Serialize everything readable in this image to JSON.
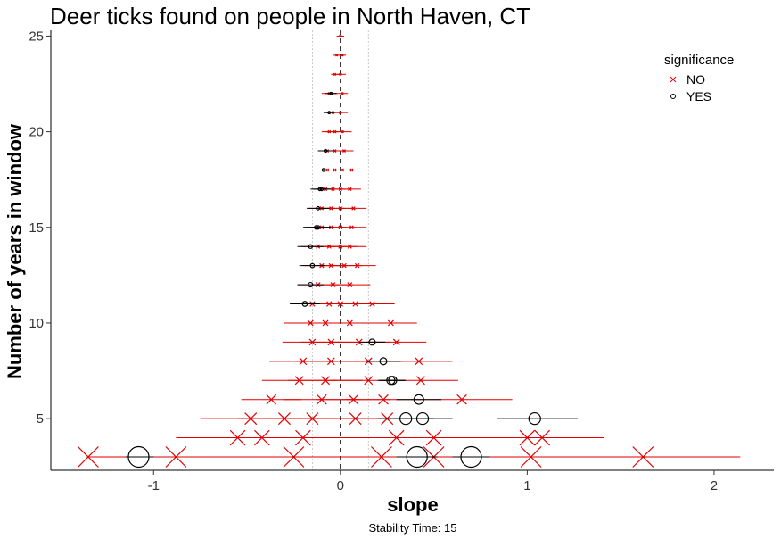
{
  "chart_data": {
    "type": "scatter",
    "title": "Deer ticks found on people in North Haven, CT",
    "xlabel": "slope",
    "ylabel": "Number of years in window",
    "caption": "Stability Time: 15",
    "xlim": [
      -1.55,
      2.32
    ],
    "ylim": [
      2.3,
      25.3
    ],
    "x_ticks": [
      -1,
      0,
      1,
      2
    ],
    "x_tick_labels": [
      "-1",
      "0",
      "1",
      "2"
    ],
    "y_ticks": [
      5,
      10,
      15,
      20,
      25
    ],
    "y_tick_labels": [
      "5",
      "10",
      "15",
      "20",
      "25"
    ],
    "reference_lines": {
      "zero": 0,
      "bounds": [
        -0.15,
        0.15
      ]
    },
    "grid": false,
    "legend": {
      "title": "significance",
      "position": "top-right",
      "entries": [
        {
          "label": "NO",
          "marker": "x",
          "color": "#e00000"
        },
        {
          "label": "YES",
          "marker": "circle",
          "color": "#000000"
        }
      ]
    },
    "colors": {
      "NO": "#e00000",
      "YES": "#000000"
    },
    "series": [
      {
        "name": "NO",
        "points": [
          {
            "y": 25,
            "x": 0.0,
            "lo": -0.02,
            "hi": 0.02
          },
          {
            "y": 24,
            "x": -0.02,
            "lo": -0.04,
            "hi": 0.01
          },
          {
            "y": 24,
            "x": 0.01,
            "lo": -0.01,
            "hi": 0.03
          },
          {
            "y": 23,
            "x": -0.03,
            "lo": -0.05,
            "hi": 0.0
          },
          {
            "y": 23,
            "x": 0.0,
            "lo": -0.03,
            "hi": 0.03
          },
          {
            "y": 22,
            "x": -0.06,
            "lo": -0.1,
            "hi": -0.02
          },
          {
            "y": 22,
            "x": 0.01,
            "lo": -0.03,
            "hi": 0.04
          },
          {
            "y": 21,
            "x": -0.04,
            "lo": -0.08,
            "hi": 0.0
          },
          {
            "y": 21,
            "x": 0.0,
            "lo": -0.04,
            "hi": 0.04
          },
          {
            "y": 20,
            "x": -0.06,
            "lo": -0.1,
            "hi": -0.01
          },
          {
            "y": 20,
            "x": -0.03,
            "lo": -0.08,
            "hi": 0.02
          },
          {
            "y": 20,
            "x": 0.01,
            "lo": -0.04,
            "hi": 0.06
          },
          {
            "y": 19,
            "x": -0.07,
            "lo": -0.12,
            "hi": -0.02
          },
          {
            "y": 19,
            "x": -0.03,
            "lo": -0.08,
            "hi": 0.02
          },
          {
            "y": 19,
            "x": 0.02,
            "lo": -0.03,
            "hi": 0.07
          },
          {
            "y": 18,
            "x": -0.07,
            "lo": -0.13,
            "hi": -0.01
          },
          {
            "y": 18,
            "x": -0.03,
            "lo": -0.09,
            "hi": 0.03
          },
          {
            "y": 18,
            "x": 0.01,
            "lo": -0.05,
            "hi": 0.07
          },
          {
            "y": 18,
            "x": 0.06,
            "lo": 0.0,
            "hi": 0.12
          },
          {
            "y": 17,
            "x": -0.08,
            "lo": -0.14,
            "hi": -0.02
          },
          {
            "y": 17,
            "x": -0.04,
            "lo": -0.1,
            "hi": 0.02
          },
          {
            "y": 17,
            "x": 0.0,
            "lo": -0.06,
            "hi": 0.06
          },
          {
            "y": 17,
            "x": 0.05,
            "lo": -0.01,
            "hi": 0.11
          },
          {
            "y": 16,
            "x": -0.1,
            "lo": -0.17,
            "hi": -0.03
          },
          {
            "y": 16,
            "x": -0.05,
            "lo": -0.12,
            "hi": 0.02
          },
          {
            "y": 16,
            "x": 0.0,
            "lo": -0.07,
            "hi": 0.07
          },
          {
            "y": 16,
            "x": 0.07,
            "lo": 0.0,
            "hi": 0.14
          },
          {
            "y": 15,
            "x": -0.1,
            "lo": -0.18,
            "hi": -0.02
          },
          {
            "y": 15,
            "x": -0.05,
            "lo": -0.13,
            "hi": 0.03
          },
          {
            "y": 15,
            "x": 0.0,
            "lo": -0.08,
            "hi": 0.08
          },
          {
            "y": 15,
            "x": 0.06,
            "lo": -0.02,
            "hi": 0.14
          },
          {
            "y": 14,
            "x": -0.12,
            "lo": -0.21,
            "hi": -0.03
          },
          {
            "y": 14,
            "x": -0.06,
            "lo": -0.15,
            "hi": 0.03
          },
          {
            "y": 14,
            "x": 0.0,
            "lo": -0.09,
            "hi": 0.09
          },
          {
            "y": 14,
            "x": 0.05,
            "lo": -0.04,
            "hi": 0.14
          },
          {
            "y": 13,
            "x": -0.1,
            "lo": -0.2,
            "hi": 0.0
          },
          {
            "y": 13,
            "x": -0.05,
            "lo": -0.15,
            "hi": 0.05
          },
          {
            "y": 13,
            "x": 0.02,
            "lo": -0.08,
            "hi": 0.12
          },
          {
            "y": 13,
            "x": 0.09,
            "lo": -0.01,
            "hi": 0.19
          },
          {
            "y": 12,
            "x": -0.12,
            "lo": -0.23,
            "hi": -0.01
          },
          {
            "y": 12,
            "x": -0.04,
            "lo": -0.15,
            "hi": 0.07
          },
          {
            "y": 12,
            "x": 0.05,
            "lo": -0.06,
            "hi": 0.16
          },
          {
            "y": 11,
            "x": -0.15,
            "lo": -0.27,
            "hi": -0.03
          },
          {
            "y": 11,
            "x": -0.06,
            "lo": -0.18,
            "hi": 0.06
          },
          {
            "y": 11,
            "x": 0.0,
            "lo": -0.12,
            "hi": 0.12
          },
          {
            "y": 11,
            "x": 0.08,
            "lo": -0.04,
            "hi": 0.2
          },
          {
            "y": 11,
            "x": 0.17,
            "lo": 0.05,
            "hi": 0.29
          },
          {
            "y": 10,
            "x": -0.16,
            "lo": -0.3,
            "hi": -0.02
          },
          {
            "y": 10,
            "x": -0.08,
            "lo": -0.22,
            "hi": 0.06
          },
          {
            "y": 10,
            "x": 0.05,
            "lo": -0.09,
            "hi": 0.19
          },
          {
            "y": 10,
            "x": 0.27,
            "lo": 0.13,
            "hi": 0.41
          },
          {
            "y": 9,
            "x": -0.15,
            "lo": -0.31,
            "hi": 0.01
          },
          {
            "y": 9,
            "x": -0.05,
            "lo": -0.21,
            "hi": 0.11
          },
          {
            "y": 9,
            "x": 0.1,
            "lo": -0.06,
            "hi": 0.26
          },
          {
            "y": 9,
            "x": 0.3,
            "lo": 0.14,
            "hi": 0.46
          },
          {
            "y": 8,
            "x": -0.2,
            "lo": -0.38,
            "hi": -0.02
          },
          {
            "y": 8,
            "x": -0.05,
            "lo": -0.23,
            "hi": 0.13
          },
          {
            "y": 8,
            "x": 0.15,
            "lo": -0.03,
            "hi": 0.33
          },
          {
            "y": 8,
            "x": 0.42,
            "lo": 0.24,
            "hi": 0.6
          },
          {
            "y": 7,
            "x": -0.22,
            "lo": -0.42,
            "hi": -0.02
          },
          {
            "y": 7,
            "x": -0.08,
            "lo": -0.28,
            "hi": 0.12
          },
          {
            "y": 7,
            "x": 0.15,
            "lo": -0.05,
            "hi": 0.35
          },
          {
            "y": 7,
            "x": 0.43,
            "lo": 0.23,
            "hi": 0.63
          },
          {
            "y": 6,
            "x": -0.37,
            "lo": -0.53,
            "hi": -0.21
          },
          {
            "y": 6,
            "x": -0.1,
            "lo": -0.3,
            "hi": 0.1
          },
          {
            "y": 6,
            "x": 0.07,
            "lo": -0.13,
            "hi": 0.27
          },
          {
            "y": 6,
            "x": 0.23,
            "lo": 0.03,
            "hi": 0.43
          },
          {
            "y": 6,
            "x": 0.65,
            "lo": 0.38,
            "hi": 0.92
          },
          {
            "y": 5,
            "x": -0.48,
            "lo": -0.75,
            "hi": -0.21
          },
          {
            "y": 5,
            "x": -0.3,
            "lo": -0.55,
            "hi": -0.05
          },
          {
            "y": 5,
            "x": -0.15,
            "lo": -0.4,
            "hi": 0.1
          },
          {
            "y": 5,
            "x": 0.08,
            "lo": -0.17,
            "hi": 0.33
          },
          {
            "y": 5,
            "x": 0.25,
            "lo": 0.0,
            "hi": 0.5
          },
          {
            "y": 4,
            "x": -0.55,
            "lo": -0.88,
            "hi": -0.22
          },
          {
            "y": 4,
            "x": -0.42,
            "lo": -0.75,
            "hi": -0.09
          },
          {
            "y": 4,
            "x": -0.2,
            "lo": -0.53,
            "hi": 0.13
          },
          {
            "y": 4,
            "x": 0.3,
            "lo": -0.03,
            "hi": 0.63
          },
          {
            "y": 4,
            "x": 0.5,
            "lo": 0.17,
            "hi": 0.83
          },
          {
            "y": 4,
            "x": 1.0,
            "lo": 0.67,
            "hi": 1.33
          },
          {
            "y": 4,
            "x": 1.08,
            "lo": 0.75,
            "hi": 1.41
          },
          {
            "y": 3,
            "x": -1.35,
            "lo": -1.35,
            "hi": -0.5
          },
          {
            "y": 3,
            "x": -0.88,
            "lo": -1.35,
            "hi": -0.35
          },
          {
            "y": 3,
            "x": -0.25,
            "lo": -0.9,
            "hi": 0.4
          },
          {
            "y": 3,
            "x": 0.22,
            "lo": -0.43,
            "hi": 0.87
          },
          {
            "y": 3,
            "x": 0.5,
            "lo": -0.15,
            "hi": 1.15
          },
          {
            "y": 3,
            "x": 1.02,
            "lo": 0.37,
            "hi": 1.67
          },
          {
            "y": 3,
            "x": 1.62,
            "lo": 1.1,
            "hi": 2.14
          }
        ]
      },
      {
        "name": "YES",
        "points": [
          {
            "y": 22,
            "x": -0.05,
            "lo": -0.08,
            "hi": -0.02
          },
          {
            "y": 21,
            "x": -0.06,
            "lo": -0.09,
            "hi": -0.03
          },
          {
            "y": 19,
            "x": -0.08,
            "lo": -0.12,
            "hi": -0.04
          },
          {
            "y": 18,
            "x": -0.09,
            "lo": -0.13,
            "hi": -0.05
          },
          {
            "y": 17,
            "x": -0.11,
            "lo": -0.16,
            "hi": -0.06
          },
          {
            "y": 17,
            "x": -0.1,
            "lo": -0.15,
            "hi": -0.05
          },
          {
            "y": 16,
            "x": -0.12,
            "lo": -0.18,
            "hi": -0.06
          },
          {
            "y": 15,
            "x": -0.13,
            "lo": -0.2,
            "hi": -0.06
          },
          {
            "y": 15,
            "x": -0.12,
            "lo": -0.19,
            "hi": -0.05
          },
          {
            "y": 14,
            "x": -0.16,
            "lo": -0.23,
            "hi": -0.09
          },
          {
            "y": 13,
            "x": -0.15,
            "lo": -0.22,
            "hi": -0.08
          },
          {
            "y": 12,
            "x": -0.16,
            "lo": -0.23,
            "hi": -0.09
          },
          {
            "y": 11,
            "x": -0.19,
            "lo": -0.27,
            "hi": -0.11
          },
          {
            "y": 9,
            "x": 0.17,
            "lo": 0.1,
            "hi": 0.24
          },
          {
            "y": 8,
            "x": 0.23,
            "lo": 0.14,
            "hi": 0.32
          },
          {
            "y": 7,
            "x": 0.27,
            "lo": 0.2,
            "hi": 0.34
          },
          {
            "y": 7,
            "x": 0.28,
            "lo": 0.21,
            "hi": 0.35
          },
          {
            "y": 6,
            "x": 0.42,
            "lo": 0.3,
            "hi": 0.54
          },
          {
            "y": 5,
            "x": 0.35,
            "lo": 0.2,
            "hi": 0.5
          },
          {
            "y": 5,
            "x": 0.44,
            "lo": 0.28,
            "hi": 0.6
          },
          {
            "y": 5,
            "x": 1.04,
            "lo": 0.84,
            "hi": 1.27
          },
          {
            "y": 3,
            "x": -1.08,
            "lo": -1.15,
            "hi": -1.0
          },
          {
            "y": 3,
            "x": 0.41,
            "lo": 0.3,
            "hi": 0.52
          },
          {
            "y": 3,
            "x": 0.7,
            "lo": 0.6,
            "hi": 0.8
          }
        ]
      }
    ]
  }
}
